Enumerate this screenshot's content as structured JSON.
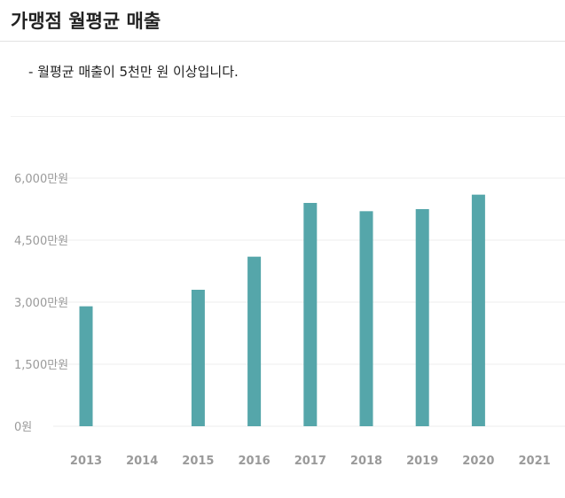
{
  "header": {
    "title": "가맹점 월평균 매출"
  },
  "note": "- 월평균 매출이 5천만 원 이상입니다.",
  "colors": {
    "bar": "#55a6aa",
    "grid": "#eeeeee",
    "label": "#9a9a9a"
  },
  "chart_data": {
    "type": "bar",
    "categories": [
      "2013",
      "2014",
      "2015",
      "2016",
      "2017",
      "2018",
      "2019",
      "2020",
      "2021"
    ],
    "values": [
      2900,
      null,
      3300,
      4100,
      5400,
      5200,
      5250,
      5600,
      null
    ],
    "y_unit": "만원",
    "ylim": [
      0,
      6000
    ],
    "yticks": [
      0,
      1500,
      3000,
      4500,
      6000
    ],
    "ytick_labels": [
      "0원",
      "1,500만원",
      "3,000만원",
      "4,500만원",
      "6,000만원"
    ],
    "grid": true,
    "legend": false
  }
}
